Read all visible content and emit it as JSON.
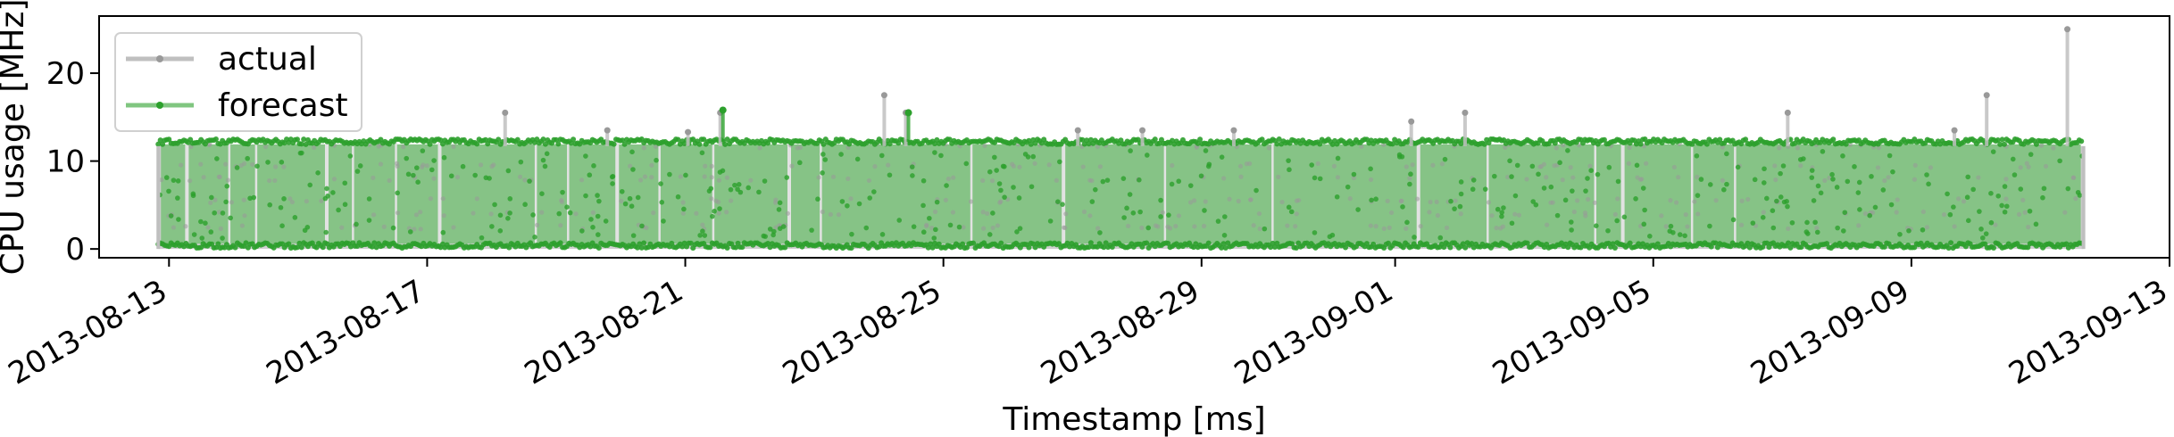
{
  "chart_data": {
    "type": "line",
    "xlabel": "Timestamp [ms]",
    "ylabel": "CPU usage [MHz]",
    "ylim": [
      -1,
      26.5
    ],
    "xlim": [
      "2013-08-11T22:00",
      "2013-09-13T00:00"
    ],
    "y_ticks": [
      0,
      10,
      20
    ],
    "x_ticks": [
      "2013-08-13",
      "2013-08-17",
      "2013-08-21",
      "2013-08-25",
      "2013-08-29",
      "2013-09-01",
      "2013-09-05",
      "2013-09-09",
      "2013-09-13"
    ],
    "grid": false,
    "legend_position": "upper left",
    "series": [
      {
        "name": "actual",
        "color": "#bfbfbf",
        "marker_color": "#999999",
        "band_range": [
          0,
          11.7
        ],
        "spikes": [
          {
            "x": "2013-08-18T05:00",
            "y": 15.5
          },
          {
            "x": "2013-08-19T19:00",
            "y": 13.5
          },
          {
            "x": "2013-08-21T01:00",
            "y": 13.3
          },
          {
            "x": "2013-08-21T13:00",
            "y": 15.5
          },
          {
            "x": "2013-08-24T02:00",
            "y": 17.5
          },
          {
            "x": "2013-08-24T10:00",
            "y": 15.5
          },
          {
            "x": "2013-08-27T02:00",
            "y": 13.5
          },
          {
            "x": "2013-08-28T02:00",
            "y": 13.5
          },
          {
            "x": "2013-08-29T12:00",
            "y": 13.5
          },
          {
            "x": "2013-09-01T06:00",
            "y": 14.5
          },
          {
            "x": "2013-09-02T02:00",
            "y": 15.5
          },
          {
            "x": "2013-09-07T02:00",
            "y": 15.5
          },
          {
            "x": "2013-09-09T16:00",
            "y": 13.5
          },
          {
            "x": "2013-09-10T04:00",
            "y": 17.5
          },
          {
            "x": "2013-09-11T10:00",
            "y": 25.0
          }
        ]
      },
      {
        "name": "forecast",
        "color": "#2ca02c",
        "band_color": "#86c386",
        "band_range": [
          0,
          12.2
        ],
        "spikes": [
          {
            "x": "2013-08-21T14:00",
            "y": 15.8
          },
          {
            "x": "2013-08-24T11:00",
            "y": 15.5
          }
        ]
      }
    ]
  }
}
